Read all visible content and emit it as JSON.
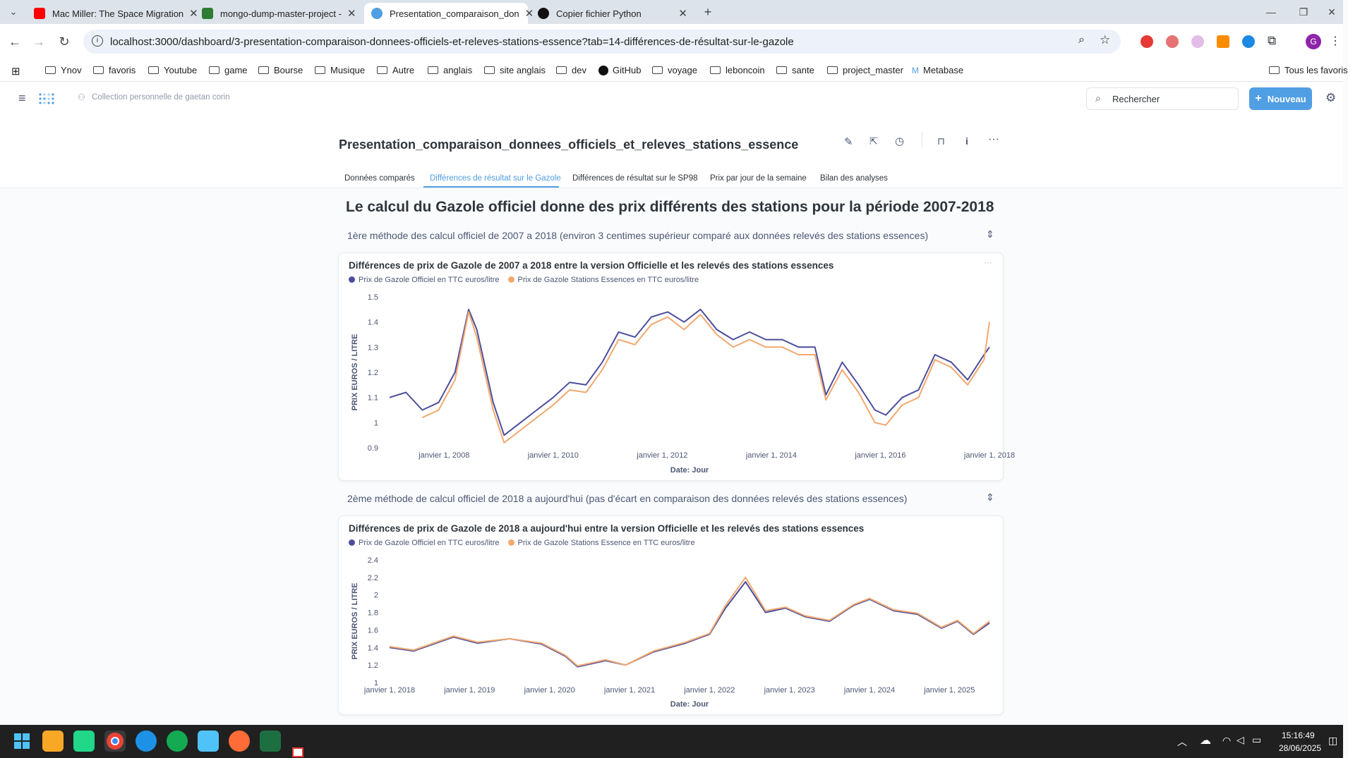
{
  "browser": {
    "tabs": [
      {
        "title": "Mac Miller: The Space Migration",
        "favicon_color": "#ff0000",
        "close": "✕"
      },
      {
        "title": "mongo-dump-master-project -",
        "favicon_color": "#2e7d32",
        "close": "✕"
      },
      {
        "title": "Presentation_comparaison_don",
        "favicon_color": "#509ee3",
        "close": "✕",
        "active": true
      },
      {
        "title": "Copier fichier Python",
        "favicon_color": "#111111",
        "close": "✕"
      }
    ],
    "new_tab": "+",
    "url": "localhost:3000/dashboard/3-presentation-comparaison-donnees-officiels-et-releves-stations-essence?tab=14-différences-de-résultat-sur-le-gazole",
    "bookmarks": [
      "Ynov",
      "favoris",
      "Youtube",
      "game",
      "Bourse",
      "Musique",
      "Autre",
      "anglais",
      "site anglais",
      "dev",
      "GitHub",
      "voyage",
      "leboncoin",
      "sante",
      "project_master",
      "Metabase"
    ],
    "all_bookmarks": "Tous les favoris",
    "profile_initial": "G"
  },
  "app": {
    "collection": "Collection personnelle de gaetan corin",
    "search_placeholder": "Rechercher",
    "new_button": "Nouveau"
  },
  "dashboard": {
    "title": "Presentation_comparaison_donnees_officiels_et_releves_stations_essence",
    "tabs": [
      "Données comparés",
      "Différences de résultat sur le Gazole",
      "Différences de résultat sur le SP98",
      "Prix par jour de la semaine",
      "Bilan des analyses"
    ],
    "heading": "Le calcul du Gazole officiel donne des prix différents des stations pour la période 2007-2018",
    "section1": "1ère méthode des calcul officiel de 2007 a 2018 (environ 3 centimes supérieur comparé aux données relevés des stations essences)",
    "section2": "2ème méthode de calcul officiel de 2018 a aujourd'hui (pas d'écart en comparaison des données relevés des stations essences)",
    "card_menu": "···"
  },
  "colors": {
    "official": "#4c4e9b",
    "stations": "#f2a86f",
    "brand": "#509ee3"
  },
  "chart_data": [
    {
      "type": "line",
      "title": "Différences de prix de Gazole de 2007 a 2018 entre la version Officielle et les relevés des stations essences",
      "xlabel": "Date: Jour",
      "ylabel": "PRIX EUROS / LITRE",
      "ylim": [
        0.9,
        1.5
      ],
      "yticks": [
        "0.9",
        "1",
        "1.1",
        "1.2",
        "1.3",
        "1.4",
        "1.5"
      ],
      "xticks": [
        "janvier 1, 2008",
        "janvier 1, 2010",
        "janvier 1, 2012",
        "janvier 1, 2014",
        "janvier 1, 2016",
        "janvier 1, 2018"
      ],
      "xlim": [
        2007.0,
        2018.0
      ],
      "series": [
        {
          "name": "Prix de Gazole Officiel en TTC euros/litre",
          "x": [
            2007.0,
            2007.3,
            2007.6,
            2007.9,
            2008.2,
            2008.45,
            2008.6,
            2008.9,
            2009.1,
            2009.4,
            2009.7,
            2010.0,
            2010.3,
            2010.6,
            2010.9,
            2011.2,
            2011.5,
            2011.8,
            2012.1,
            2012.4,
            2012.7,
            2013.0,
            2013.3,
            2013.6,
            2013.9,
            2014.2,
            2014.5,
            2014.8,
            2015.0,
            2015.3,
            2015.6,
            2015.9,
            2016.1,
            2016.4,
            2016.7,
            2017.0,
            2017.3,
            2017.6,
            2017.9,
            2018.0
          ],
          "values": [
            1.1,
            1.12,
            1.05,
            1.08,
            1.2,
            1.45,
            1.37,
            1.08,
            0.95,
            1.0,
            1.05,
            1.1,
            1.16,
            1.15,
            1.24,
            1.36,
            1.34,
            1.42,
            1.44,
            1.4,
            1.45,
            1.37,
            1.33,
            1.36,
            1.33,
            1.33,
            1.3,
            1.3,
            1.11,
            1.24,
            1.15,
            1.05,
            1.03,
            1.1,
            1.13,
            1.27,
            1.24,
            1.17,
            1.27,
            1.3
          ]
        },
        {
          "name": "Prix de Gazole Stations Essences en TTC euros/litre",
          "x": [
            2007.6,
            2007.9,
            2008.2,
            2008.45,
            2008.6,
            2008.9,
            2009.1,
            2009.4,
            2009.7,
            2010.0,
            2010.3,
            2010.6,
            2010.9,
            2011.2,
            2011.5,
            2011.8,
            2012.1,
            2012.4,
            2012.7,
            2013.0,
            2013.3,
            2013.6,
            2013.9,
            2014.2,
            2014.5,
            2014.8,
            2015.0,
            2015.3,
            2015.6,
            2015.9,
            2016.1,
            2016.4,
            2016.7,
            2017.0,
            2017.3,
            2017.6,
            2017.9,
            2018.0
          ],
          "values": [
            1.02,
            1.05,
            1.17,
            1.44,
            1.34,
            1.05,
            0.92,
            0.97,
            1.02,
            1.07,
            1.13,
            1.12,
            1.21,
            1.33,
            1.31,
            1.39,
            1.42,
            1.37,
            1.43,
            1.35,
            1.3,
            1.33,
            1.3,
            1.3,
            1.27,
            1.27,
            1.09,
            1.21,
            1.12,
            1.0,
            0.99,
            1.07,
            1.1,
            1.25,
            1.22,
            1.15,
            1.25,
            1.4
          ]
        }
      ]
    },
    {
      "type": "line",
      "title": "Différences de prix de Gazole de 2018 a aujourd'hui entre la version Officielle et les relevés des stations essences",
      "xlabel": "Date: Jour",
      "ylabel": "PRIX EUROS / LITRE",
      "ylim": [
        1.0,
        2.4
      ],
      "yticks": [
        "1",
        "1.2",
        "1.4",
        "1.6",
        "1.8",
        "2",
        "2.2",
        "2.4"
      ],
      "xticks": [
        "janvier 1, 2018",
        "janvier 1, 2019",
        "janvier 1, 2020",
        "janvier 1, 2021",
        "janvier 1, 2022",
        "janvier 1, 2023",
        "janvier 1, 2024",
        "janvier 1, 2025"
      ],
      "xlim": [
        2018.0,
        2025.5
      ],
      "series": [
        {
          "name": "Prix de Gazole Officiel en TTC euros/litre",
          "x": [
            2018.0,
            2018.3,
            2018.8,
            2019.1,
            2019.5,
            2019.9,
            2020.2,
            2020.35,
            2020.7,
            2020.95,
            2021.3,
            2021.7,
            2022.0,
            2022.2,
            2022.45,
            2022.7,
            2022.95,
            2023.2,
            2023.5,
            2023.8,
            2024.0,
            2024.3,
            2024.6,
            2024.9,
            2025.1,
            2025.3,
            2025.5
          ],
          "values": [
            1.4,
            1.36,
            1.52,
            1.45,
            1.5,
            1.44,
            1.3,
            1.18,
            1.25,
            1.2,
            1.35,
            1.45,
            1.55,
            1.85,
            2.15,
            1.8,
            1.85,
            1.75,
            1.7,
            1.88,
            1.95,
            1.82,
            1.78,
            1.62,
            1.7,
            1.55,
            1.68
          ]
        },
        {
          "name": "Prix de Gazole Stations Essence en TTC euros/litre",
          "x": [
            2018.0,
            2018.3,
            2018.8,
            2019.1,
            2019.5,
            2019.9,
            2020.2,
            2020.35,
            2020.7,
            2020.95,
            2021.3,
            2021.7,
            2022.0,
            2022.2,
            2022.45,
            2022.7,
            2022.95,
            2023.2,
            2023.5,
            2023.8,
            2024.0,
            2024.3,
            2024.6,
            2024.9,
            2025.1,
            2025.3,
            2025.5
          ],
          "values": [
            1.41,
            1.37,
            1.53,
            1.46,
            1.5,
            1.45,
            1.31,
            1.19,
            1.26,
            1.2,
            1.36,
            1.46,
            1.56,
            1.88,
            2.2,
            1.82,
            1.86,
            1.76,
            1.71,
            1.89,
            1.96,
            1.83,
            1.79,
            1.63,
            1.71,
            1.56,
            1.7
          ]
        }
      ]
    }
  ],
  "taskbar": {
    "time": "15:16:49",
    "date": "28/06/2025"
  }
}
